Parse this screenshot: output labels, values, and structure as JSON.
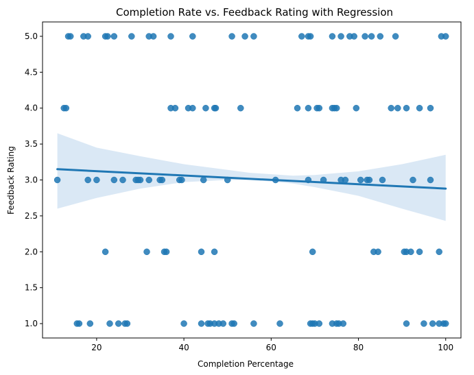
{
  "chart_data": {
    "type": "scatter",
    "title": "Completion Rate vs. Feedback Rating with Regression",
    "xlabel": "Completion Percentage",
    "ylabel": "Feedback Rating",
    "xlim": [
      7.6,
      103.5
    ],
    "ylim": [
      0.8,
      5.2
    ],
    "xticks": [
      20,
      40,
      60,
      80,
      100
    ],
    "yticks": [
      1.0,
      1.5,
      2.0,
      2.5,
      3.0,
      3.5,
      4.0,
      4.5,
      5.0
    ],
    "grid": false,
    "colors": {
      "points": "#1f77b4",
      "line": "#1f77b4",
      "band": "#c6dbef"
    },
    "regression": {
      "x": [
        11,
        100
      ],
      "y": [
        3.15,
        2.88
      ]
    },
    "confidence_band": {
      "x": [
        11,
        20,
        30,
        40,
        50,
        55,
        60,
        65,
        70,
        80,
        90,
        100
      ],
      "upper": [
        3.65,
        3.45,
        3.33,
        3.22,
        3.14,
        3.1,
        3.08,
        3.06,
        3.07,
        3.12,
        3.22,
        3.35
      ],
      "lower": [
        2.6,
        2.75,
        2.88,
        2.97,
        3.0,
        3.0,
        2.98,
        2.95,
        2.9,
        2.78,
        2.6,
        2.43
      ]
    },
    "points": [
      [
        11,
        3
      ],
      [
        12.5,
        4
      ],
      [
        13,
        4
      ],
      [
        13.5,
        5
      ],
      [
        14,
        5
      ],
      [
        17,
        5
      ],
      [
        18,
        5
      ],
      [
        22,
        5
      ],
      [
        22.5,
        5
      ],
      [
        24,
        5
      ],
      [
        28,
        5
      ],
      [
        32,
        5
      ],
      [
        33,
        5
      ],
      [
        37,
        5
      ],
      [
        42,
        5
      ],
      [
        51,
        5
      ],
      [
        54,
        5
      ],
      [
        56,
        5
      ],
      [
        67,
        5
      ],
      [
        68.5,
        5
      ],
      [
        69,
        5
      ],
      [
        74,
        5
      ],
      [
        76,
        5
      ],
      [
        78,
        5
      ],
      [
        79,
        5
      ],
      [
        81.5,
        5
      ],
      [
        83,
        5
      ],
      [
        85,
        5
      ],
      [
        88.5,
        5
      ],
      [
        99,
        5
      ],
      [
        100,
        5
      ],
      [
        37,
        4
      ],
      [
        38,
        4
      ],
      [
        41,
        4
      ],
      [
        42,
        4
      ],
      [
        45,
        4
      ],
      [
        47,
        4
      ],
      [
        47.3,
        4
      ],
      [
        53,
        4
      ],
      [
        66,
        4
      ],
      [
        68.5,
        4
      ],
      [
        70.5,
        4
      ],
      [
        71,
        4
      ],
      [
        74,
        4
      ],
      [
        74.5,
        4
      ],
      [
        75,
        4
      ],
      [
        79.5,
        4
      ],
      [
        87.5,
        4
      ],
      [
        89,
        4
      ],
      [
        91,
        4
      ],
      [
        94,
        4
      ],
      [
        96.5,
        4
      ],
      [
        18,
        3
      ],
      [
        20,
        3
      ],
      [
        24,
        3
      ],
      [
        26,
        3
      ],
      [
        29,
        3
      ],
      [
        29.5,
        3
      ],
      [
        30,
        3
      ],
      [
        32,
        3
      ],
      [
        34.5,
        3
      ],
      [
        35,
        3
      ],
      [
        39,
        3
      ],
      [
        39.5,
        3
      ],
      [
        44.5,
        3
      ],
      [
        50,
        3
      ],
      [
        61,
        3
      ],
      [
        68.5,
        3
      ],
      [
        72,
        3
      ],
      [
        76,
        3
      ],
      [
        77,
        3
      ],
      [
        80.5,
        3
      ],
      [
        82,
        3
      ],
      [
        82.5,
        3
      ],
      [
        85.5,
        3
      ],
      [
        92.5,
        3
      ],
      [
        96.5,
        3
      ],
      [
        22,
        2
      ],
      [
        31.5,
        2
      ],
      [
        35.5,
        2
      ],
      [
        36,
        2
      ],
      [
        44,
        2
      ],
      [
        47,
        2
      ],
      [
        69.5,
        2
      ],
      [
        83.5,
        2
      ],
      [
        84.5,
        2
      ],
      [
        90.5,
        2
      ],
      [
        91,
        2
      ],
      [
        92,
        2
      ],
      [
        94,
        2
      ],
      [
        98.5,
        2
      ],
      [
        15.5,
        1
      ],
      [
        16,
        1
      ],
      [
        18.5,
        1
      ],
      [
        23,
        1
      ],
      [
        25,
        1
      ],
      [
        26.5,
        1
      ],
      [
        27,
        1
      ],
      [
        40,
        1
      ],
      [
        44,
        1
      ],
      [
        45.5,
        1
      ],
      [
        46,
        1
      ],
      [
        47,
        1
      ],
      [
        48,
        1
      ],
      [
        49,
        1
      ],
      [
        51,
        1
      ],
      [
        51.5,
        1
      ],
      [
        56,
        1
      ],
      [
        62,
        1
      ],
      [
        69,
        1
      ],
      [
        69.5,
        1
      ],
      [
        70,
        1
      ],
      [
        71,
        1
      ],
      [
        74,
        1
      ],
      [
        75,
        1
      ],
      [
        75.5,
        1
      ],
      [
        76.5,
        1
      ],
      [
        91,
        1
      ],
      [
        95,
        1
      ],
      [
        97,
        1
      ],
      [
        98.5,
        1
      ],
      [
        99.5,
        1
      ],
      [
        100,
        1
      ]
    ]
  }
}
